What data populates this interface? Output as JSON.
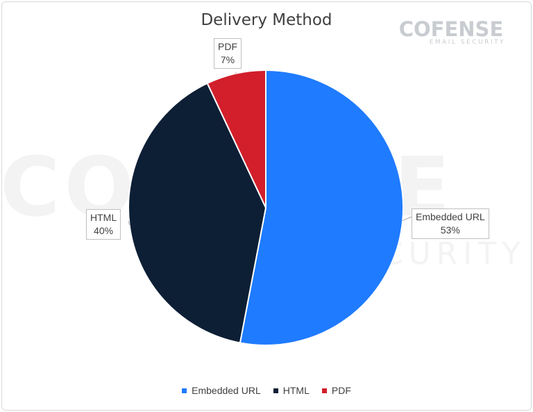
{
  "logo": {
    "main": "COFENSE",
    "sub": "EMAIL SECURITY"
  },
  "watermark": {
    "main": "COFENSE",
    "sub": "SECURITY"
  },
  "chart_data": {
    "type": "pie",
    "title": "Delivery Method",
    "slices": [
      {
        "label": "Embedded URL",
        "value": 53,
        "display": "53%",
        "color": "#1f7bff"
      },
      {
        "label": "HTML",
        "value": 40,
        "display": "40%",
        "color": "#0d1f35"
      },
      {
        "label": "PDF",
        "value": 7,
        "display": "7%",
        "color": "#d21f2b"
      }
    ],
    "legend": {
      "placement": "bottom",
      "items": [
        "Embedded URL",
        "HTML",
        "PDF"
      ]
    }
  }
}
